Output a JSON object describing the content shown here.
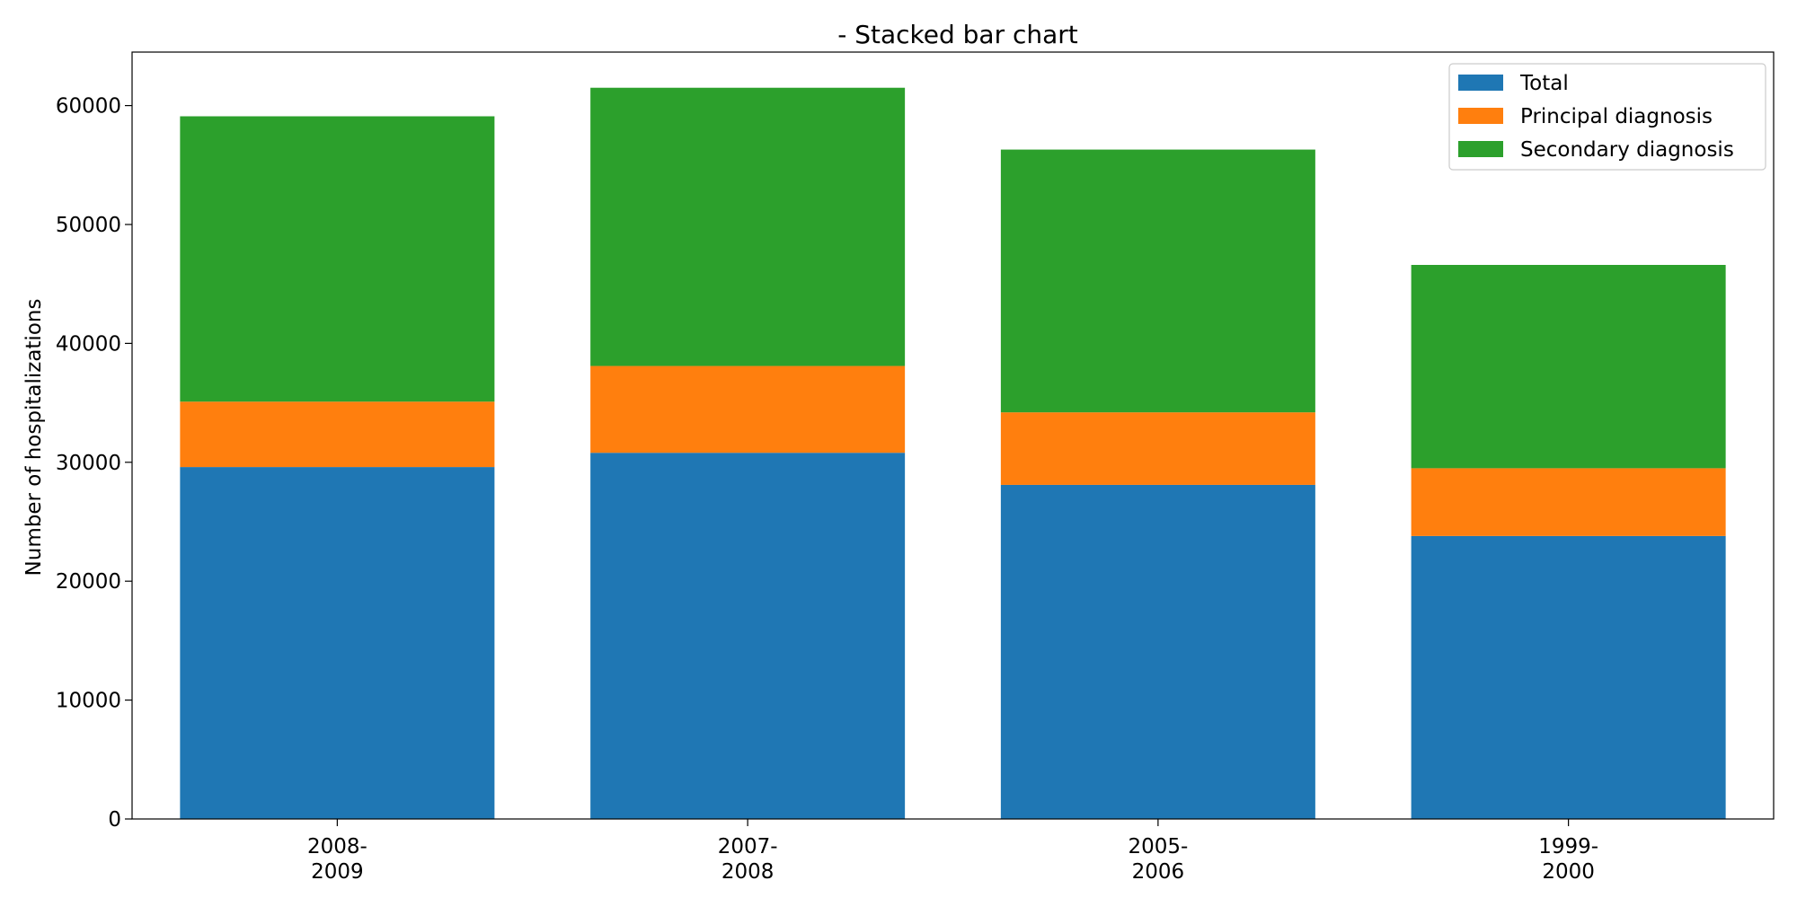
{
  "chart_data": {
    "type": "bar",
    "stacked": true,
    "title": "- Stacked bar chart",
    "xlabel": "",
    "ylabel": "Number of hospitalizations",
    "categories": [
      [
        "2008-",
        "2009"
      ],
      [
        "2007-",
        "2008"
      ],
      [
        "2005-",
        "2006"
      ],
      [
        "1999-",
        "2000"
      ]
    ],
    "series": [
      {
        "name": "Total",
        "color": "#1f77b4",
        "values": [
          29600,
          30800,
          28100,
          23800
        ]
      },
      {
        "name": "Principal diagnosis",
        "color": "#ff7f0e",
        "values": [
          5500,
          7300,
          6100,
          5700
        ]
      },
      {
        "name": "Secondary diagnosis",
        "color": "#2ca02c",
        "values": [
          24000,
          23400,
          22100,
          17100
        ]
      }
    ],
    "ylim": [
      0,
      64500
    ],
    "yticks": [
      0,
      10000,
      20000,
      30000,
      40000,
      50000,
      60000
    ],
    "grid": false,
    "legend_position": "top-right"
  }
}
